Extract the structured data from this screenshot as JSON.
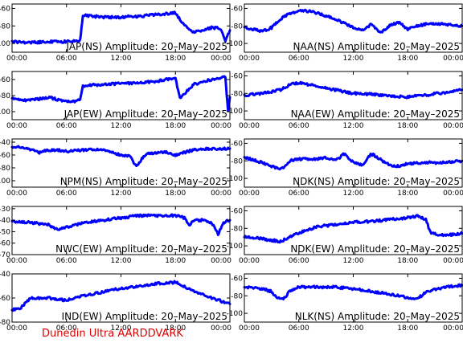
{
  "footer": {
    "credit": "Dunedin Ultra AARDDVARK"
  },
  "chart_data": [
    {
      "type": "line",
      "title": "JAP(NS) Amplitude: 20–May–2025",
      "ylim": [
        -110,
        -55
      ],
      "yticks": [
        -100,
        -80,
        -60
      ],
      "xticks": [
        "00:00",
        "06:00",
        "12:00",
        "18:00",
        "00:00"
      ],
      "color": "#0000ff",
      "series": [
        {
          "x": [
            0,
            2,
            4,
            6,
            7.5,
            7.8,
            10,
            12,
            14,
            16,
            18,
            19,
            20,
            22,
            23,
            23.5,
            24
          ],
          "y": [
            -98,
            -99,
            -98,
            -98,
            -96,
            -68,
            -70,
            -70,
            -69,
            -67,
            -65,
            -80,
            -87,
            -82,
            -83,
            -98,
            -85
          ]
        }
      ]
    },
    {
      "type": "line",
      "title": "NAA(NS) Amplitude: 20–May–2025",
      "ylim": [
        -110,
        -55
      ],
      "yticks": [
        -100,
        -80,
        -60
      ],
      "xticks": [
        "00:00",
        "06:00",
        "12:00",
        "18:00",
        "00:00"
      ],
      "color": "#0000ff",
      "series": [
        {
          "x": [
            0,
            2,
            3,
            4,
            5,
            6,
            7,
            8,
            10,
            11,
            12,
            13,
            14,
            15,
            16,
            17,
            18,
            19,
            20,
            22,
            24
          ],
          "y": [
            -82,
            -86,
            -82,
            -72,
            -66,
            -63,
            -63,
            -65,
            -72,
            -77,
            -82,
            -85,
            -78,
            -88,
            -80,
            -76,
            -84,
            -80,
            -78,
            -78,
            -80
          ]
        }
      ]
    },
    {
      "type": "line",
      "title": "JAP(EW) Amplitude: 20–May–2025",
      "ylim": [
        -110,
        -50
      ],
      "yticks": [
        -100,
        -80,
        -60
      ],
      "xticks": [
        "00:00",
        "06:00",
        "12:00",
        "18:00",
        "00:00"
      ],
      "color": "#0000ff",
      "series": [
        {
          "x": [
            0,
            2,
            4,
            6,
            7.5,
            7.8,
            10,
            12,
            14,
            16,
            18,
            18.5,
            20,
            22,
            23.5,
            23.8,
            24
          ],
          "y": [
            -84,
            -86,
            -82,
            -88,
            -86,
            -68,
            -66,
            -65,
            -64,
            -62,
            -58,
            -84,
            -66,
            -60,
            -57,
            -100,
            -82
          ]
        }
      ]
    },
    {
      "type": "line",
      "title": "NAA(EW) Amplitude: 20–May–2025",
      "ylim": [
        -110,
        -55
      ],
      "yticks": [
        -100,
        -80,
        -60
      ],
      "xticks": [
        "00:00",
        "06:00",
        "12:00",
        "18:00",
        "00:00"
      ],
      "color": "#0000ff",
      "series": [
        {
          "x": [
            0,
            2,
            4,
            5,
            6,
            7,
            8,
            10,
            12,
            14,
            16,
            18,
            20,
            22,
            24
          ],
          "y": [
            -82,
            -80,
            -76,
            -70,
            -68,
            -70,
            -72,
            -76,
            -80,
            -81,
            -83,
            -84,
            -82,
            -79,
            -76
          ]
        }
      ]
    },
    {
      "type": "line",
      "title": "NPM(NS) Amplitude: 20–May–2025",
      "ylim": [
        -110,
        -35
      ],
      "yticks": [
        -100,
        -80,
        -60,
        -40
      ],
      "xticks": [
        "00:00",
        "06:00",
        "12:00",
        "18:00",
        "00:00"
      ],
      "color": "#0000ff",
      "series": [
        {
          "x": [
            0,
            1,
            2,
            3,
            4,
            5,
            6,
            8,
            10,
            12,
            13,
            13.7,
            14.5,
            15,
            16,
            17,
            18,
            19,
            20,
            22,
            24
          ],
          "y": [
            -48,
            -48,
            -52,
            -56,
            -52,
            -52,
            -54,
            -52,
            -52,
            -60,
            -62,
            -78,
            -62,
            -58,
            -56,
            -55,
            -60,
            -56,
            -52,
            -50,
            -50
          ]
        }
      ]
    },
    {
      "type": "line",
      "title": "NDK(NS) Amplitude: 20–May–2025",
      "ylim": [
        -110,
        -55
      ],
      "yticks": [
        -100,
        -80,
        -60
      ],
      "xticks": [
        "00:00",
        "06:00",
        "12:00",
        "18:00",
        "00:00"
      ],
      "color": "#0000ff",
      "series": [
        {
          "x": [
            0,
            2,
            4,
            5,
            6,
            8,
            9,
            10,
            11,
            12,
            13,
            14,
            16,
            17,
            18,
            20,
            22,
            24
          ],
          "y": [
            -76,
            -82,
            -90,
            -80,
            -78,
            -78,
            -76,
            -80,
            -72,
            -82,
            -85,
            -72,
            -85,
            -86,
            -83,
            -82,
            -82,
            -80
          ]
        }
      ]
    },
    {
      "type": "line",
      "title": "NWC(EW) Amplitude: 20–May–2025",
      "ylim": [
        -70,
        -28
      ],
      "yticks": [
        -70,
        -60,
        -50,
        -40,
        -30
      ],
      "xticks": [
        "00:00",
        "06:00",
        "12:00",
        "18:00",
        "00:00"
      ],
      "color": "#0000ff",
      "series": [
        {
          "x": [
            0,
            2,
            4,
            5,
            6,
            8,
            10,
            12,
            14,
            16,
            18,
            19,
            19.5,
            20,
            21,
            22,
            22.7,
            23.3,
            24
          ],
          "y": [
            -41,
            -42,
            -44,
            -48,
            -46,
            -42,
            -40,
            -38,
            -36,
            -36,
            -36,
            -38,
            -45,
            -40,
            -40,
            -42,
            -52,
            -42,
            -40
          ]
        }
      ]
    },
    {
      "type": "line",
      "title": "NDK(EW) Amplitude: 20–May–2025",
      "ylim": [
        -110,
        -55
      ],
      "yticks": [
        -100,
        -80,
        -60
      ],
      "xticks": [
        "00:00",
        "06:00",
        "12:00",
        "18:00",
        "00:00"
      ],
      "color": "#0000ff",
      "series": [
        {
          "x": [
            0,
            2,
            4,
            6,
            7,
            8,
            10,
            12,
            14,
            16,
            18,
            19,
            20,
            20.5,
            22,
            24
          ],
          "y": [
            -90,
            -92,
            -95,
            -85,
            -82,
            -78,
            -76,
            -73,
            -72,
            -70,
            -68,
            -66,
            -70,
            -85,
            -88,
            -86
          ]
        }
      ]
    },
    {
      "type": "line",
      "title": "IND(EW) Amplitude: 20–May–2025",
      "ylim": [
        -80,
        -40
      ],
      "yticks": [
        -80,
        -60,
        -40
      ],
      "xticks": [
        "00:00",
        "06:00",
        "12:00",
        "18:00",
        "00:00"
      ],
      "color": "#0000ff",
      "series": [
        {
          "x": [
            0,
            1,
            2,
            4,
            6,
            8,
            10,
            12,
            14,
            16,
            18,
            20,
            22,
            24
          ],
          "y": [
            -70,
            -68,
            -60,
            -60,
            -62,
            -58,
            -55,
            -52,
            -50,
            -48,
            -47,
            -54,
            -60,
            -65
          ]
        }
      ]
    },
    {
      "type": "line",
      "title": "NLK(NS) Amplitude: 20–May–2025",
      "ylim": [
        -110,
        -55
      ],
      "yticks": [
        -100,
        -80,
        -60
      ],
      "xticks": [
        "00:00",
        "06:00",
        "12:00",
        "18:00",
        "00:00"
      ],
      "color": "#0000ff",
      "series": [
        {
          "x": [
            0,
            2,
            3,
            3.5,
            4,
            4.5,
            5,
            6,
            8,
            10,
            12,
            14,
            16,
            18,
            19,
            20,
            22,
            24
          ],
          "y": [
            -70,
            -72,
            -75,
            -82,
            -84,
            -82,
            -74,
            -70,
            -70,
            -70,
            -72,
            -75,
            -78,
            -82,
            -84,
            -76,
            -70,
            -68
          ]
        }
      ]
    }
  ]
}
